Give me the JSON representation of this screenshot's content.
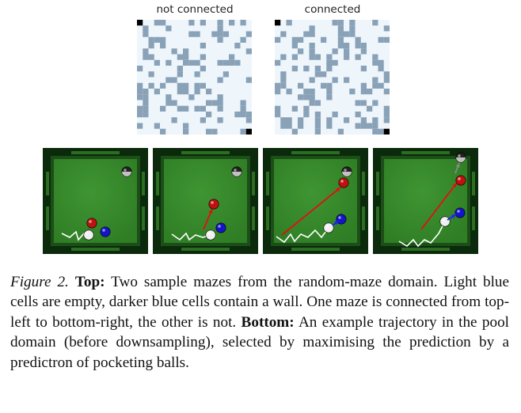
{
  "top": {
    "maze_left_label": "not connected",
    "maze_right_label": "connected"
  },
  "colors": {
    "maze_empty": "#eef6fc",
    "maze_wall": "#8aa2b8",
    "maze_corner": "#000000",
    "table_felt": "#2f7d25",
    "table_rail": "#0b2a0b",
    "ball_red": "#c01010",
    "ball_blue": "#1414c8",
    "ball_white": "#f0f0f0",
    "arrow_red": "#e01010",
    "arrow_blue": "#2020ff"
  },
  "caption": {
    "figure_label": "Figure 2.",
    "top_label": "Top:",
    "top_text": "Two sample mazes from the random-maze domain. Light blue cells are empty, darker blue cells contain a wall. One maze is connected from top-left to bottom-right, the other is not.",
    "bottom_label": "Bottom:",
    "bottom_text": "An example trajectory in the pool domain (before downsampling), selected by maximising the prediction by a predictron of pocketing balls."
  }
}
